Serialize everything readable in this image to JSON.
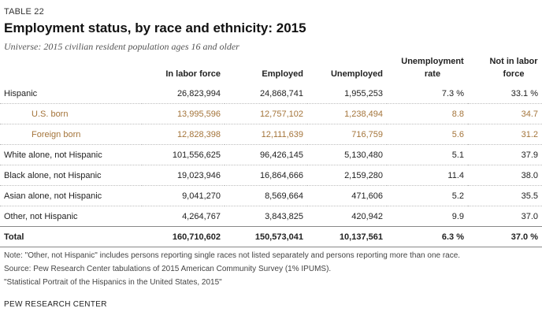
{
  "table_tag": "TABLE 22",
  "title": "Employment status, by race and ethnicity: 2015",
  "subtitle": "Universe: 2015 civilian resident population ages 16 and older",
  "columns": [
    "In labor force",
    "Employed",
    "Unemployed",
    "Unemployment rate",
    "Not in labor force"
  ],
  "rows": [
    {
      "label": "Hispanic",
      "labor_force": "26,823,994",
      "employed": "24,868,741",
      "unemployed": "1,955,253",
      "unemp_rate": "7.3 %",
      "not_in_lf": "33.1 %"
    },
    {
      "label": "U.S. born",
      "labor_force": "13,995,596",
      "employed": "12,757,102",
      "unemployed": "1,238,494",
      "unemp_rate": "8.8",
      "not_in_lf": "34.7"
    },
    {
      "label": "Foreign born",
      "labor_force": "12,828,398",
      "employed": "12,111,639",
      "unemployed": "716,759",
      "unemp_rate": "5.6",
      "not_in_lf": "31.2"
    },
    {
      "label": "White alone, not Hispanic",
      "labor_force": "101,556,625",
      "employed": "96,426,145",
      "unemployed": "5,130,480",
      "unemp_rate": "5.1",
      "not_in_lf": "37.9"
    },
    {
      "label": "Black alone, not Hispanic",
      "labor_force": "19,023,946",
      "employed": "16,864,666",
      "unemployed": "2,159,280",
      "unemp_rate": "11.4",
      "not_in_lf": "38.0"
    },
    {
      "label": "Asian alone, not Hispanic",
      "labor_force": "9,041,270",
      "employed": "8,569,664",
      "unemployed": "471,606",
      "unemp_rate": "5.2",
      "not_in_lf": "35.5"
    },
    {
      "label": "Other, not Hispanic",
      "labor_force": "4,264,767",
      "employed": "3,843,825",
      "unemployed": "420,942",
      "unemp_rate": "9.9",
      "not_in_lf": "37.0"
    }
  ],
  "total": {
    "label": "Total",
    "labor_force": "160,710,602",
    "employed": "150,573,041",
    "unemployed": "10,137,561",
    "unemp_rate": "6.3 %",
    "not_in_lf": "37.0 %"
  },
  "notes": [
    "Note: \"Other, not Hispanic\" includes persons reporting single races not listed separately and persons reporting more than one race.",
    "Source: Pew Research Center tabulations of 2015 American Community Survey (1% IPUMS).",
    "\"Statistical Portrait of the Hispanics in the United States, 2015\""
  ],
  "org": "PEW RESEARCH CENTER",
  "colors": {
    "subgroup": "#a4743a",
    "rule": "#888888",
    "dotted_rule": "#bdbdbd"
  }
}
